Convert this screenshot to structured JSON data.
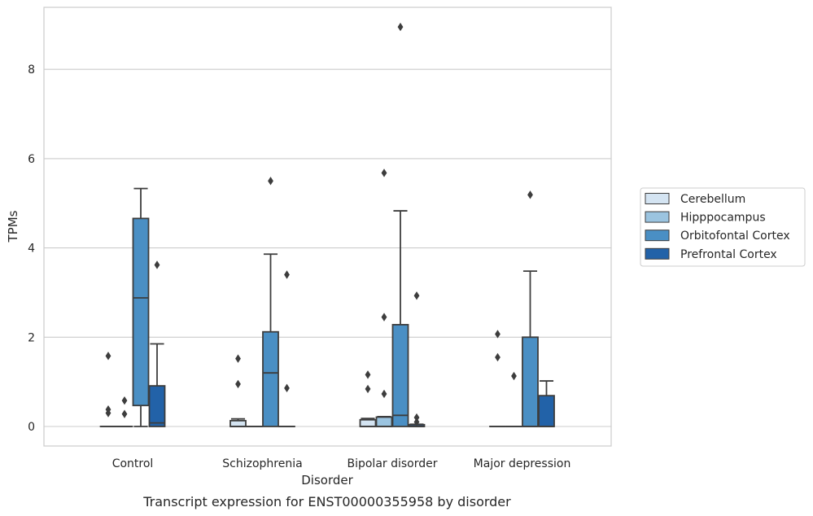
{
  "caption": "Transcript expression for ENST00000355958 by disorder",
  "chart_data": {
    "type": "box",
    "xlabel": "Disorder",
    "ylabel": "TPMs",
    "ylim": [
      -0.43,
      9.6
    ],
    "yticks": [
      "0",
      "2",
      "4",
      "6",
      "8"
    ],
    "grid": "horizontal",
    "legend_position": "right",
    "categories": [
      "Control",
      "Schizophrenia",
      "Bipolar disorder",
      "Major depression"
    ],
    "series": [
      {
        "name": "Cerebellum",
        "color": "#d4e4f2",
        "boxes": [
          {
            "q1": 0,
            "median": 0,
            "q3": 0,
            "whisker_low": 0,
            "whisker_high": 0,
            "outliers": [
              1.58,
              0.38,
              0.3
            ]
          },
          {
            "q1": 0,
            "median": 0,
            "q3": 0.13,
            "whisker_low": 0,
            "whisker_high": 0.17,
            "outliers": [
              1.52,
              0.95
            ]
          },
          {
            "q1": 0,
            "median": 0,
            "q3": 0.15,
            "whisker_low": 0,
            "whisker_high": 0.18,
            "outliers": [
              1.16,
              0.84
            ]
          },
          {
            "q1": 0,
            "median": 0,
            "q3": 0,
            "whisker_low": 0,
            "whisker_high": 0,
            "outliers": [
              2.07,
              1.55
            ]
          }
        ]
      },
      {
        "name": "Hipppocampus",
        "color": "#9bc4e0",
        "boxes": [
          {
            "q1": 0,
            "median": 0,
            "q3": 0,
            "whisker_low": 0,
            "whisker_high": 0,
            "outliers": [
              0.58,
              0.28
            ]
          },
          {
            "q1": 0,
            "median": 0,
            "q3": 0,
            "whisker_low": 0,
            "whisker_high": 0,
            "outliers": []
          },
          {
            "q1": 0,
            "median": 0,
            "q3": 0.21,
            "whisker_low": 0,
            "whisker_high": 0.22,
            "outliers": [
              5.68,
              2.45,
              0.73
            ]
          },
          {
            "q1": 0,
            "median": 0,
            "q3": 0,
            "whisker_low": 0,
            "whisker_high": 0,
            "outliers": [
              1.13
            ]
          }
        ]
      },
      {
        "name": "Orbitofontal Cortex",
        "color": "#4a8fc4",
        "boxes": [
          {
            "q1": 0.47,
            "median": 2.88,
            "q3": 4.66,
            "whisker_low": 0,
            "whisker_high": 5.33,
            "outliers": []
          },
          {
            "q1": 0,
            "median": 1.2,
            "q3": 2.12,
            "whisker_low": 0,
            "whisker_high": 3.86,
            "outliers": [
              5.5
            ]
          },
          {
            "q1": 0,
            "median": 0.25,
            "q3": 2.28,
            "whisker_low": 0,
            "whisker_high": 4.83,
            "outliers": [
              8.95
            ]
          },
          {
            "q1": 0,
            "median": 0,
            "q3": 2.0,
            "whisker_low": 0,
            "whisker_high": 3.48,
            "outliers": [
              5.19
            ]
          }
        ]
      },
      {
        "name": "Prefrontal Cortex",
        "color": "#2262a8",
        "boxes": [
          {
            "q1": 0,
            "median": 0.08,
            "q3": 0.91,
            "whisker_low": 0,
            "whisker_high": 1.85,
            "outliers": [
              3.62
            ]
          },
          {
            "q1": 0,
            "median": 0,
            "q3": 0,
            "whisker_low": 0,
            "whisker_high": 0,
            "outliers": [
              3.4,
              0.86
            ]
          },
          {
            "q1": 0,
            "median": 0,
            "q3": 0.04,
            "whisker_low": 0,
            "whisker_high": 0.05,
            "outliers": [
              2.93,
              0.2,
              0.1
            ]
          },
          {
            "q1": 0,
            "median": 0,
            "q3": 0.69,
            "whisker_low": 0,
            "whisker_high": 1.02,
            "outliers": []
          }
        ]
      }
    ]
  }
}
